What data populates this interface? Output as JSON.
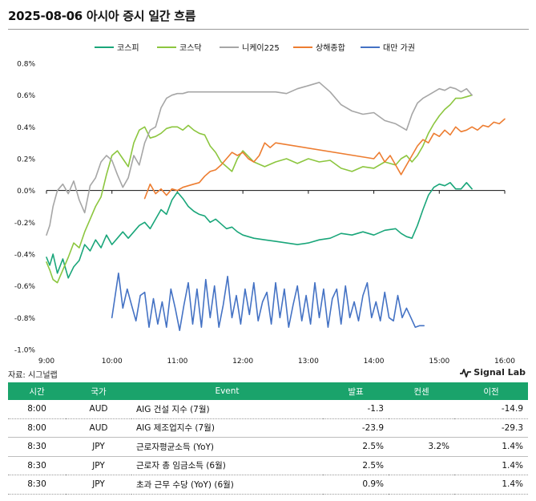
{
  "page": {
    "title": "2025-08-06 아시아 증시 일간 흐름",
    "source": "자료: 시그널랩",
    "brand": "Signal Lab"
  },
  "chart_data": {
    "type": "line",
    "title": "",
    "xlabel": "",
    "ylabel": "",
    "x_ticks": [
      "9:00",
      "10:00",
      "11:00",
      "12:00",
      "13:00",
      "14:00",
      "15:00",
      "16:00"
    ],
    "y_ticks": [
      "0.8%",
      "0.6%",
      "0.4%",
      "0.2%",
      "0.0%",
      "-0.2%",
      "-0.4%",
      "-0.6%",
      "-0.8%",
      "-1.0%"
    ],
    "xlim": [
      "9:00",
      "16:00"
    ],
    "ylim": [
      -1.0,
      0.8
    ],
    "legend_position": "top",
    "grid": false,
    "series": [
      {
        "name": "코스피",
        "color": "#1aa67a",
        "time": [
          "9:00",
          "9:03",
          "9:06",
          "9:10",
          "9:15",
          "9:20",
          "9:25",
          "9:30",
          "9:35",
          "9:40",
          "9:45",
          "9:50",
          "9:55",
          "10:00",
          "10:05",
          "10:10",
          "10:15",
          "10:20",
          "10:25",
          "10:30",
          "10:35",
          "10:40",
          "10:45",
          "10:50",
          "10:55",
          "11:00",
          "11:05",
          "11:10",
          "11:15",
          "11:20",
          "11:25",
          "11:30",
          "11:35",
          "11:40",
          "11:45",
          "11:50",
          "11:55",
          "12:00",
          "12:10",
          "12:20",
          "12:30",
          "12:40",
          "12:50",
          "13:00",
          "13:10",
          "13:20",
          "13:30",
          "13:40",
          "13:50",
          "14:00",
          "14:10",
          "14:20",
          "14:25",
          "14:30",
          "14:35",
          "14:40",
          "14:45",
          "14:50",
          "14:55",
          "15:00",
          "15:05",
          "15:10",
          "15:15",
          "15:20",
          "15:25",
          "15:30"
        ],
        "values": [
          -0.42,
          -0.47,
          -0.4,
          -0.52,
          -0.43,
          -0.55,
          -0.48,
          -0.44,
          -0.34,
          -0.38,
          -0.31,
          -0.36,
          -0.28,
          -0.34,
          -0.3,
          -0.26,
          -0.3,
          -0.26,
          -0.22,
          -0.2,
          -0.24,
          -0.18,
          -0.12,
          -0.15,
          -0.06,
          -0.01,
          -0.05,
          -0.1,
          -0.13,
          -0.15,
          -0.16,
          -0.2,
          -0.18,
          -0.21,
          -0.24,
          -0.23,
          -0.26,
          -0.28,
          -0.3,
          -0.31,
          -0.32,
          -0.33,
          -0.34,
          -0.33,
          -0.31,
          -0.3,
          -0.27,
          -0.28,
          -0.26,
          -0.28,
          -0.25,
          -0.24,
          -0.27,
          -0.29,
          -0.3,
          -0.22,
          -0.12,
          -0.03,
          0.02,
          0.04,
          0.03,
          0.05,
          0.01,
          0.01,
          0.05,
          0.01
        ]
      },
      {
        "name": "코스닥",
        "color": "#8cc63f",
        "time": [
          "9:00",
          "9:03",
          "9:06",
          "9:10",
          "9:15",
          "9:20",
          "9:25",
          "9:30",
          "9:35",
          "9:40",
          "9:45",
          "9:50",
          "9:55",
          "10:00",
          "10:05",
          "10:10",
          "10:15",
          "10:20",
          "10:25",
          "10:30",
          "10:35",
          "10:40",
          "10:45",
          "10:50",
          "10:55",
          "11:00",
          "11:05",
          "11:10",
          "11:15",
          "11:20",
          "11:25",
          "11:30",
          "11:35",
          "11:40",
          "11:45",
          "11:50",
          "11:55",
          "12:00",
          "12:10",
          "12:20",
          "12:30",
          "12:40",
          "12:50",
          "13:00",
          "13:10",
          "13:20",
          "13:30",
          "13:40",
          "13:50",
          "14:00",
          "14:10",
          "14:20",
          "14:25",
          "14:30",
          "14:35",
          "14:40",
          "14:45",
          "14:50",
          "14:55",
          "15:00",
          "15:05",
          "15:10",
          "15:15",
          "15:20",
          "15:25",
          "15:30"
        ],
        "values": [
          -0.45,
          -0.5,
          -0.56,
          -0.58,
          -0.5,
          -0.42,
          -0.33,
          -0.36,
          -0.26,
          -0.18,
          -0.1,
          -0.04,
          0.1,
          0.22,
          0.25,
          0.2,
          0.15,
          0.3,
          0.38,
          0.4,
          0.33,
          0.34,
          0.36,
          0.39,
          0.4,
          0.4,
          0.38,
          0.41,
          0.38,
          0.36,
          0.35,
          0.28,
          0.24,
          0.18,
          0.15,
          0.12,
          0.2,
          0.25,
          0.18,
          0.15,
          0.18,
          0.2,
          0.17,
          0.2,
          0.18,
          0.19,
          0.14,
          0.12,
          0.15,
          0.14,
          0.18,
          0.16,
          0.2,
          0.22,
          0.18,
          0.22,
          0.28,
          0.36,
          0.42,
          0.47,
          0.51,
          0.54,
          0.58,
          0.58,
          0.59,
          0.6
        ]
      },
      {
        "name": "니케이225",
        "color": "#a6a6a6",
        "time": [
          "9:00",
          "9:03",
          "9:06",
          "9:10",
          "9:15",
          "9:20",
          "9:25",
          "9:30",
          "9:35",
          "9:40",
          "9:45",
          "9:50",
          "9:55",
          "10:00",
          "10:05",
          "10:10",
          "10:15",
          "10:20",
          "10:25",
          "10:30",
          "10:35",
          "10:40",
          "10:45",
          "10:50",
          "10:55",
          "11:00",
          "11:05",
          "11:10",
          "11:15",
          "11:20",
          "11:25",
          "11:30",
          "11:35",
          "12:30",
          "12:40",
          "12:50",
          "13:00",
          "13:10",
          "13:20",
          "13:30",
          "13:40",
          "13:50",
          "14:00",
          "14:10",
          "14:20",
          "14:25",
          "14:30",
          "14:35",
          "14:40",
          "14:45",
          "14:50",
          "14:55",
          "15:00",
          "15:05",
          "15:10",
          "15:15",
          "15:20",
          "15:25",
          "15:30"
        ],
        "values": [
          -0.28,
          -0.22,
          -0.1,
          0.0,
          0.04,
          -0.02,
          0.06,
          -0.06,
          -0.14,
          0.03,
          0.08,
          0.18,
          0.22,
          0.19,
          0.1,
          0.02,
          0.08,
          0.22,
          0.16,
          0.3,
          0.38,
          0.4,
          0.52,
          0.58,
          0.6,
          0.61,
          0.61,
          0.62,
          0.62,
          0.62,
          0.62,
          0.62,
          0.62,
          0.62,
          0.61,
          0.64,
          0.66,
          0.68,
          0.62,
          0.54,
          0.5,
          0.48,
          0.49,
          0.44,
          0.42,
          0.4,
          0.38,
          0.48,
          0.55,
          0.58,
          0.6,
          0.62,
          0.64,
          0.63,
          0.65,
          0.64,
          0.62,
          0.64,
          0.6
        ]
      },
      {
        "name": "상해종합",
        "color": "#ed7d31",
        "time": [
          "10:30",
          "10:35",
          "10:40",
          "10:45",
          "10:50",
          "10:55",
          "11:00",
          "11:05",
          "11:10",
          "11:15",
          "11:20",
          "11:25",
          "11:30",
          "11:35",
          "11:40",
          "11:45",
          "11:50",
          "11:55",
          "12:00",
          "12:05",
          "12:10",
          "12:15",
          "12:20",
          "12:25",
          "12:30",
          "14:00",
          "14:05",
          "14:10",
          "14:15",
          "14:20",
          "14:25",
          "14:30",
          "14:35",
          "14:40",
          "14:45",
          "14:50",
          "14:55",
          "15:00",
          "15:05",
          "15:10",
          "15:15",
          "15:20",
          "15:25",
          "15:30",
          "15:35",
          "15:40",
          "15:45",
          "15:50",
          "15:55",
          "16:00"
        ],
        "values": [
          -0.05,
          0.04,
          -0.02,
          0.01,
          -0.03,
          0.01,
          0.0,
          0.02,
          0.03,
          0.04,
          0.05,
          0.09,
          0.12,
          0.13,
          0.16,
          0.2,
          0.24,
          0.22,
          0.24,
          0.2,
          0.18,
          0.22,
          0.3,
          0.27,
          0.3,
          0.2,
          0.24,
          0.18,
          0.22,
          0.16,
          0.1,
          0.16,
          0.22,
          0.28,
          0.32,
          0.3,
          0.36,
          0.34,
          0.38,
          0.35,
          0.4,
          0.37,
          0.38,
          0.4,
          0.38,
          0.41,
          0.4,
          0.43,
          0.42,
          0.45
        ]
      },
      {
        "name": "대만 가권",
        "color": "#4472c4",
        "time": [
          "10:00",
          "10:03",
          "10:06",
          "10:10",
          "10:14",
          "10:18",
          "10:22",
          "10:26",
          "10:30",
          "10:34",
          "10:38",
          "10:42",
          "10:46",
          "10:50",
          "10:54",
          "10:58",
          "11:02",
          "11:06",
          "11:10",
          "11:14",
          "11:18",
          "11:22",
          "11:26",
          "11:30",
          "11:34",
          "11:38",
          "11:42",
          "11:46",
          "11:50",
          "11:54",
          "11:58",
          "12:02",
          "12:06",
          "12:10",
          "12:14",
          "12:18",
          "12:22",
          "12:26",
          "12:30",
          "12:34",
          "12:38",
          "12:42",
          "12:46",
          "12:50",
          "12:54",
          "12:58",
          "13:02",
          "13:06",
          "13:10",
          "13:14",
          "13:18",
          "13:22",
          "13:26",
          "13:30",
          "13:34",
          "13:38",
          "13:42",
          "13:46",
          "13:50",
          "13:54",
          "13:58",
          "14:02",
          "14:06",
          "14:10",
          "14:14",
          "14:18",
          "14:22",
          "14:26",
          "14:30",
          "14:34",
          "14:38",
          "14:42",
          "14:46"
        ],
        "values": [
          -0.8,
          -0.66,
          -0.52,
          -0.74,
          -0.62,
          -0.72,
          -0.82,
          -0.66,
          -0.64,
          -0.86,
          -0.68,
          -0.84,
          -0.7,
          -0.86,
          -0.62,
          -0.74,
          -0.88,
          -0.72,
          -0.58,
          -0.84,
          -0.62,
          -0.86,
          -0.56,
          -0.8,
          -0.6,
          -0.86,
          -0.72,
          -0.54,
          -0.8,
          -0.66,
          -0.84,
          -0.62,
          -0.78,
          -0.58,
          -0.82,
          -0.7,
          -0.64,
          -0.84,
          -0.58,
          -0.8,
          -0.62,
          -0.86,
          -0.72,
          -0.6,
          -0.82,
          -0.66,
          -0.84,
          -0.58,
          -0.8,
          -0.62,
          -0.86,
          -0.68,
          -0.62,
          -0.84,
          -0.6,
          -0.8,
          -0.7,
          -0.82,
          -0.66,
          -0.58,
          -0.8,
          -0.7,
          -0.82,
          -0.64,
          -0.8,
          -0.82,
          -0.66,
          -0.8,
          -0.74,
          -0.8,
          -0.86,
          -0.85,
          -0.85
        ]
      }
    ]
  },
  "table": {
    "headers": {
      "time": "시간",
      "country": "국가",
      "event": "Event",
      "actual": "발표",
      "forecast": "컨센",
      "previous": "이전"
    },
    "rows": [
      {
        "time": "8:00",
        "country": "AUD",
        "event": "AIG 건설 지수 (7월)",
        "actual": "-1.3",
        "forecast": "",
        "previous": "-14.9"
      },
      {
        "time": "8:00",
        "country": "AUD",
        "event": "AIG 제조업지수 (7월)",
        "actual": "-23.9",
        "forecast": "",
        "previous": "-29.3"
      },
      {
        "time": "8:30",
        "country": "JPY",
        "event": "근로자평균소득 (YoY)",
        "actual": "2.5%",
        "forecast": "3.2%",
        "previous": "1.4%"
      },
      {
        "time": "8:30",
        "country": "JPY",
        "event": "근로자 총 임금소득 (6월)",
        "actual": "2.5%",
        "forecast": "",
        "previous": "1.4%"
      },
      {
        "time": "8:30",
        "country": "JPY",
        "event": "초과 근무 수당 (YoY) (6월)",
        "actual": "0.9%",
        "forecast": "",
        "previous": "1.4%"
      }
    ]
  }
}
